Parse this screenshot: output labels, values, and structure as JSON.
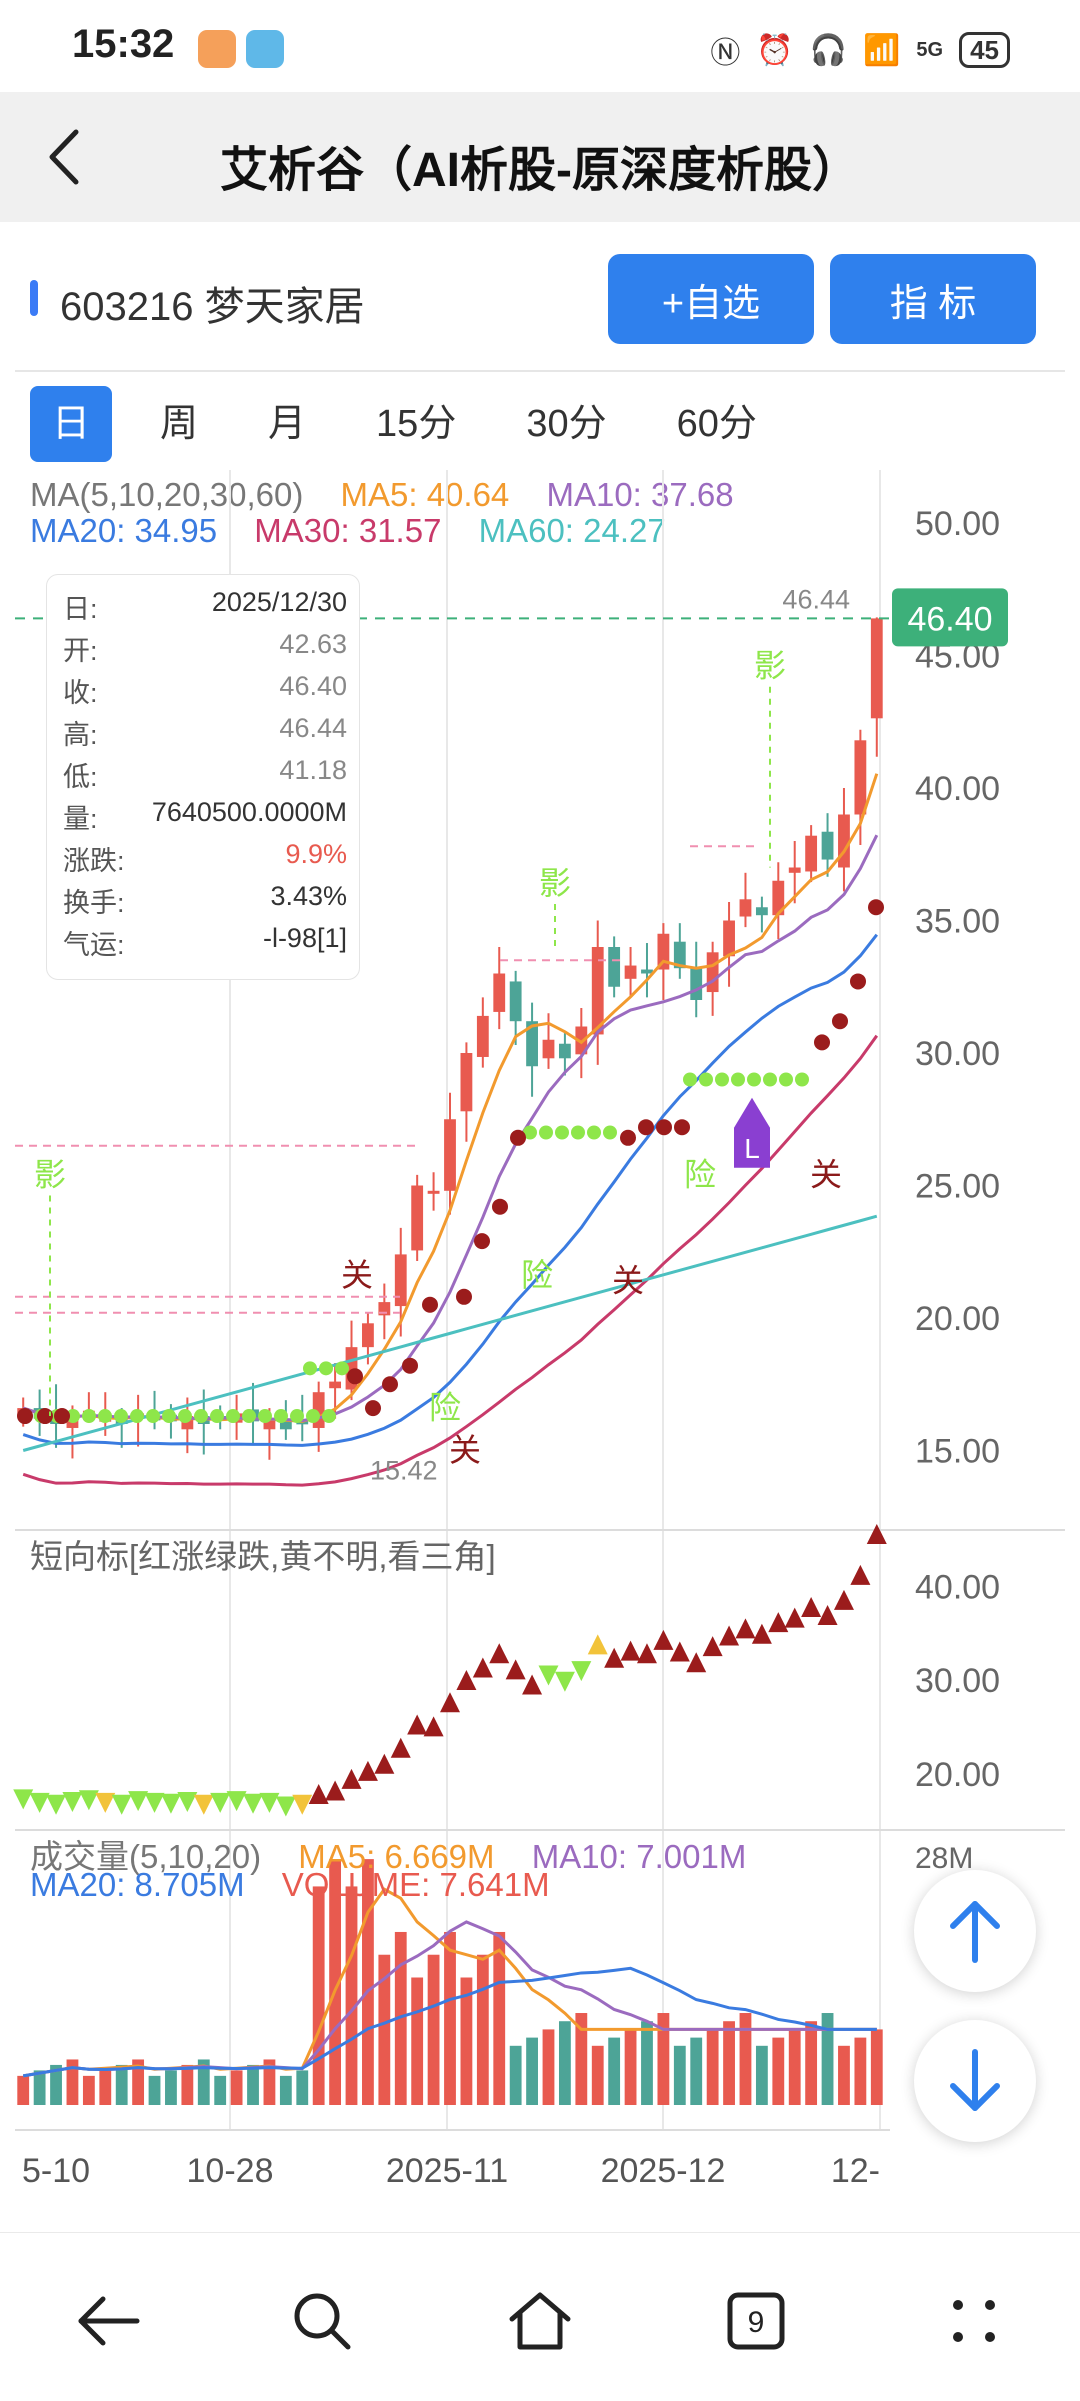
{
  "status": {
    "time": "15:32",
    "battery": "45",
    "network": "5G"
  },
  "header": {
    "title": "艾析谷（AI析股-原深度析股）"
  },
  "stock": {
    "code_name": "603216 梦天家居",
    "add_watch_label": "+自选",
    "indicator_label": "指  标"
  },
  "tabs": [
    {
      "label": "日",
      "active": true
    },
    {
      "label": "周",
      "active": false
    },
    {
      "label": "月",
      "active": false
    },
    {
      "label": "15分",
      "active": false
    },
    {
      "label": "30分",
      "active": false
    },
    {
      "label": "60分",
      "active": false
    }
  ],
  "ma_legend": {
    "title": "MA(5,10,20,30,60)",
    "ma5": "MA5: 40.64",
    "ma10": "MA10: 37.68",
    "ma20": "MA20: 34.95",
    "ma30": "MA30: 31.57",
    "ma60": "MA60: 24.27"
  },
  "info": {
    "date_label": "日:",
    "date": "2025/12/30",
    "open_label": "开:",
    "open": "42.63",
    "close_label": "收:",
    "close": "46.40",
    "high_label": "高:",
    "high": "46.44",
    "low_label": "低:",
    "low": "41.18",
    "vol_label": "量:",
    "vol": "7640500.0000M",
    "chg_label": "涨跌:",
    "chg": "9.9%",
    "turn_label": "换手:",
    "turn": "3.43%",
    "luck_label": "气运:",
    "luck": "-l-98[1]"
  },
  "price_axis": [
    "50.00",
    "45.00",
    "40.00",
    "35.00",
    "30.00",
    "25.00",
    "20.00",
    "15.00"
  ],
  "price_current": "46.40",
  "price_high_note": "46.44",
  "price_low_note": "15.42",
  "annotations": {
    "ying": "影",
    "xian": "险",
    "guan": "关",
    "l": "L"
  },
  "short_indicator": {
    "label": "短向标[红涨绿跌,黄不明,看三角]",
    "axis": [
      "40.00",
      "30.00",
      "20.00"
    ]
  },
  "volume": {
    "label": "成交量(5,10,20)",
    "ma5": "MA5: 6.669M",
    "ma10": "MA10: 7.001M",
    "ma20": "MA20: 8.705M",
    "vol": "VOLUME: 7.641M",
    "axis_top": "28M"
  },
  "x_axis": [
    "5-10",
    "10-28",
    "2025-11",
    "2025-12",
    "12-"
  ],
  "colors": {
    "up": "#e85a4f",
    "down": "#4da497",
    "ma5": "#f29a2e",
    "ma10": "#9b6bbf",
    "ma20": "#3a7be0",
    "ma30": "#c83a6a",
    "ma60": "#4cc0c0",
    "accent": "#2f80ed",
    "price_tag": "#3db07a"
  },
  "chart_data": {
    "type": "candlestick",
    "last_candle": {
      "date": "2025/12/30",
      "open": 42.63,
      "close": 46.4,
      "high": 46.44,
      "low": 41.18
    },
    "close_series": [
      16.6,
      16.2,
      16.0,
      16.3,
      16.5,
      16.2,
      16.0,
      16.4,
      16.2,
      16.1,
      16.3,
      16.0,
      16.2,
      16.4,
      16.1,
      16.2,
      15.8,
      16.0,
      17.2,
      17.6,
      18.9,
      19.8,
      20.6,
      22.4,
      25.0,
      24.8,
      27.5,
      30.0,
      31.4,
      33.0,
      31.2,
      29.5,
      30.5,
      29.8,
      31.0,
      34.0,
      32.5,
      33.3,
      33.0,
      34.5,
      33.2,
      32.0,
      33.8,
      35.0,
      35.8,
      35.2,
      36.5,
      37.0,
      38.2,
      37.3,
      39.0,
      41.8,
      46.4
    ],
    "ylim": [
      12,
      52
    ]
  }
}
